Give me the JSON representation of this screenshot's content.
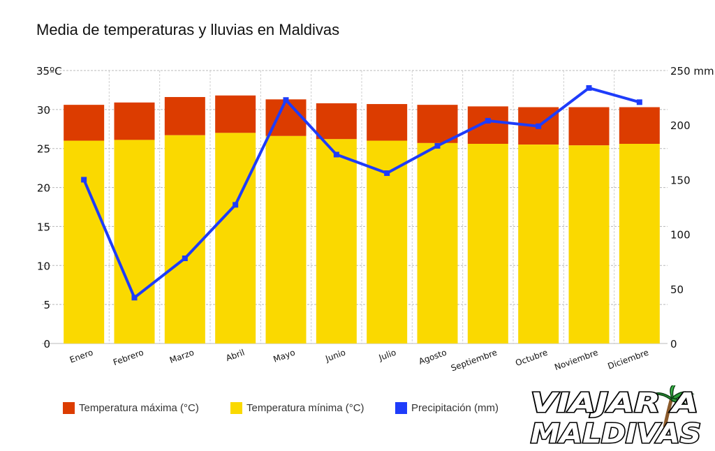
{
  "chart_data": {
    "type": "bar",
    "title": "Media de temperaturas y lluvias en Maldivas",
    "categories": [
      "Enero",
      "Febrero",
      "Marzo",
      "Abril",
      "Mayo",
      "Junio",
      "Julio",
      "Agosto",
      "Septiembre",
      "Octubre",
      "Noviembre",
      "Diciembre"
    ],
    "series": [
      {
        "name": "Temperatura mínima (°C)",
        "type": "bar",
        "axis": "left",
        "color": "#fad900",
        "values": [
          26.0,
          26.1,
          26.7,
          27.0,
          26.6,
          26.2,
          26.0,
          25.7,
          25.6,
          25.5,
          25.4,
          25.6
        ]
      },
      {
        "name": "Temperatura máxima (°C)",
        "type": "bar",
        "axis": "left",
        "color": "#dc3c00",
        "values": [
          30.6,
          30.9,
          31.6,
          31.8,
          31.3,
          30.8,
          30.7,
          30.6,
          30.4,
          30.3,
          30.3,
          30.3
        ]
      },
      {
        "name": "Precipitación (mm)",
        "type": "line",
        "axis": "right",
        "color": "#1e3cfa",
        "values": [
          150,
          42,
          78,
          127,
          223,
          173,
          156,
          181,
          204,
          199,
          234,
          221
        ]
      }
    ],
    "yAxisLeft": {
      "label": "35ºC",
      "ticks": [
        "0",
        "5",
        "10",
        "15",
        "20",
        "25",
        "30"
      ],
      "range": [
        0,
        35
      ]
    },
    "yAxisRight": {
      "label": "250 mm",
      "ticks": [
        "0",
        "50",
        "100",
        "150",
        "200"
      ],
      "range": [
        0,
        250
      ]
    }
  },
  "legend": [
    {
      "label": "Temperatura máxima (°C)",
      "color": "#dc3c00"
    },
    {
      "label": "Temperatura mínima (°C)",
      "color": "#fad900"
    },
    {
      "label": "Precipitación (mm)",
      "color": "#1e3cfa"
    }
  ],
  "logo": {
    "line1": "VIAJAR A",
    "line2": "MALDIVAS"
  }
}
